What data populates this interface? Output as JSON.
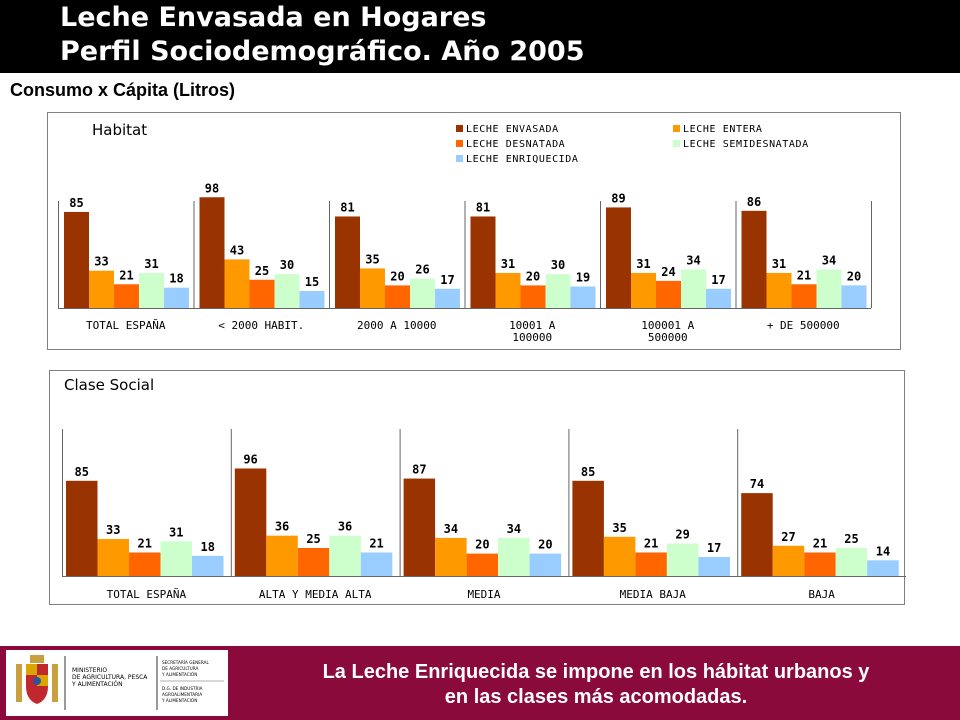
{
  "header": {
    "title_line1": "Leche Envasada en Hogares",
    "title_line2": "Perfil Sociodemográfico. Año 2005",
    "subtitle": "Consumo x Cápita (Litros)"
  },
  "legend": [
    {
      "label": "LECHE ENVASADA",
      "color": "#993300"
    },
    {
      "label": "LECHE ENTERA",
      "color": "#ff9900"
    },
    {
      "label": "LECHE DESNATADA",
      "color": "#ff6600"
    },
    {
      "label": "LECHE SEMIDESNATADA",
      "color": "#ccffcc"
    },
    {
      "label": "LECHE ENRIQUECIDA",
      "color": "#99ccff"
    }
  ],
  "chart_data": [
    {
      "type": "bar",
      "title": "Habitat",
      "categories": [
        [
          "TOTAL ESPAÑA"
        ],
        [
          "< 2000 HABIT."
        ],
        [
          "2000 A 10000"
        ],
        [
          "10001 A",
          "100000"
        ],
        [
          "100001 A",
          "500000"
        ],
        [
          "+ DE 500000"
        ]
      ],
      "series": [
        {
          "name": "LECHE ENVASADA",
          "values": [
            85,
            98,
            81,
            81,
            89,
            86
          ]
        },
        {
          "name": "LECHE ENTERA",
          "values": [
            33,
            43,
            35,
            31,
            31,
            31
          ]
        },
        {
          "name": "LECHE DESNATADA",
          "values": [
            21,
            25,
            20,
            20,
            24,
            21
          ]
        },
        {
          "name": "LECHE SEMIDESNATADA",
          "values": [
            31,
            30,
            26,
            30,
            34,
            34
          ]
        },
        {
          "name": "LECHE ENRIQUECIDA",
          "values": [
            18,
            15,
            17,
            19,
            17,
            20
          ]
        }
      ]
    },
    {
      "type": "bar",
      "title": "Clase Social",
      "categories": [
        [
          "TOTAL ESPAÑA"
        ],
        [
          "ALTA Y MEDIA ALTA"
        ],
        [
          "MEDIA"
        ],
        [
          "MEDIA BAJA"
        ],
        [
          "BAJA"
        ]
      ],
      "series": [
        {
          "name": "LECHE ENVASADA",
          "values": [
            85,
            96,
            87,
            85,
            74
          ]
        },
        {
          "name": "LECHE ENTERA",
          "values": [
            33,
            36,
            34,
            35,
            27
          ]
        },
        {
          "name": "LECHE DESNATADA",
          "values": [
            21,
            25,
            20,
            21,
            21
          ]
        },
        {
          "name": "LECHE SEMIDESNATADA",
          "values": [
            31,
            36,
            34,
            29,
            25
          ]
        },
        {
          "name": "LECHE ENRIQUECIDA",
          "values": [
            18,
            21,
            20,
            17,
            14
          ]
        }
      ]
    }
  ],
  "footer": {
    "ministry_lines": [
      "MINISTERIO",
      "DE AGRICULTURA, PESCA",
      "Y ALIMENTACIÓN"
    ],
    "secretaria_lines": [
      "SECRETARÍA GENERAL",
      "DE AGRICULTURA",
      "Y ALIMENTACIÓN"
    ],
    "direccion_lines": [
      "D.G. DE INDUSTRIA",
      "AGROALIMENTARIA",
      "Y ALIMENTACIÓN"
    ],
    "message_line1": "La Leche Enriquecida se impone en los hábitat urbanos y",
    "message_line2": "en las clases más acomodadas."
  }
}
